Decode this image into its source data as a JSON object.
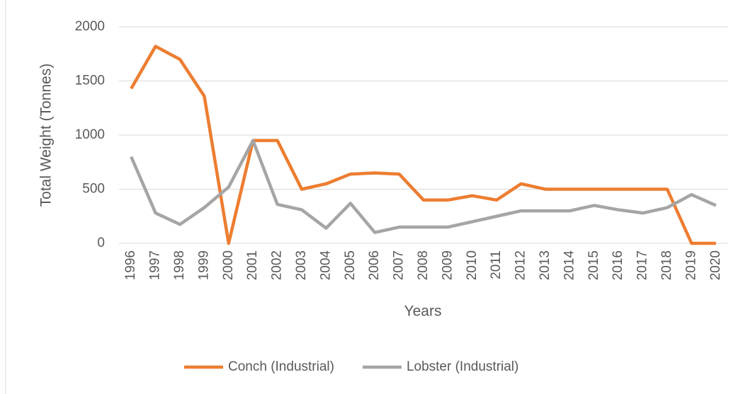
{
  "chart_data": {
    "type": "line",
    "x_label": "Years",
    "y_label": "Total Weight (Tonnes)",
    "categories": [
      "1996",
      "1997",
      "1998",
      "1999",
      "2000",
      "2001",
      "2002",
      "2003",
      "2004",
      "2005",
      "2006",
      "2007",
      "2008",
      "2009",
      "2010",
      "2011",
      "2012",
      "2013",
      "2014",
      "2015",
      "2016",
      "2017",
      "2018",
      "2019",
      "2020"
    ],
    "series": [
      {
        "name": "Conch (Industrial)",
        "color": "#ed7d31",
        "values": [
          1430,
          1820,
          1700,
          1360,
          0,
          950,
          950,
          500,
          550,
          640,
          650,
          640,
          400,
          400,
          440,
          400,
          550,
          500,
          500,
          500,
          500,
          500,
          500,
          0,
          0
        ]
      },
      {
        "name": "Lobster (Industrial)",
        "color": "#a5a5a5",
        "values": [
          800,
          280,
          175,
          330,
          520,
          950,
          360,
          310,
          140,
          370,
          100,
          150,
          150,
          150,
          200,
          250,
          300,
          300,
          300,
          350,
          310,
          280,
          330,
          450,
          350
        ]
      }
    ],
    "ylim": [
      0,
      2000
    ],
    "yticks": [
      0,
      500,
      1000,
      1500,
      2000
    ],
    "grid": true,
    "legend": "bottom"
  }
}
